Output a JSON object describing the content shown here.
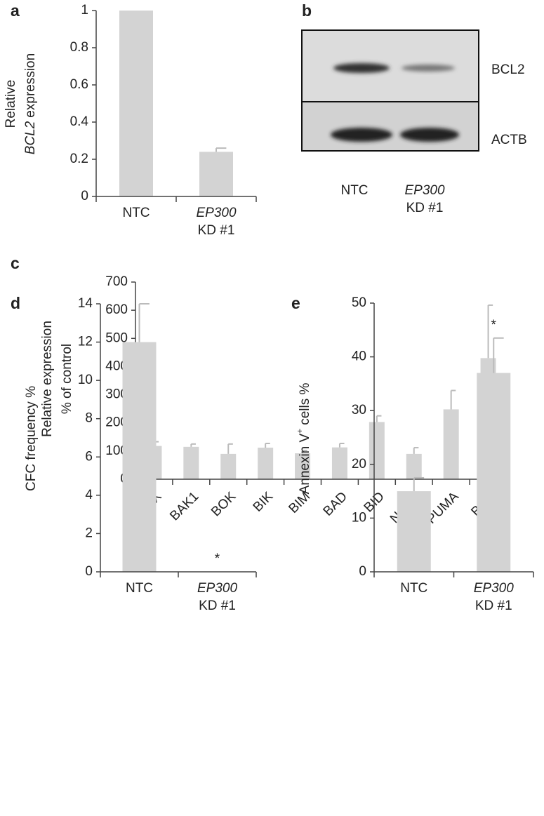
{
  "chart_data": [
    {
      "type": "bar",
      "panel": "a",
      "ylabel": [
        "Relative",
        "BCL2",
        "expression"
      ],
      "categories": [
        [
          "NTC"
        ],
        [
          "EP300",
          "KD #1"
        ]
      ],
      "values": [
        1,
        0.24
      ],
      "errors": [
        null,
        0.02
      ],
      "significance": [
        null,
        null
      ],
      "color": "#d3d3d3",
      "ylim": [
        0,
        1
      ],
      "yticks": [
        0,
        0.2,
        0.4,
        0.6,
        0.8,
        1
      ]
    },
    {
      "type": "bar",
      "panel": "c",
      "ylabel": [
        "Relative expression",
        "% of control"
      ],
      "categories": [
        [
          "BAX"
        ],
        [
          "BAK1"
        ],
        [
          "BOK"
        ],
        [
          "BIK"
        ],
        [
          "BIM"
        ],
        [
          "BAD"
        ],
        [
          "BID"
        ],
        [
          "NOXA"
        ],
        [
          "PUMA"
        ],
        [
          "BMF"
        ]
      ],
      "values": [
        118,
        115,
        90,
        112,
        92,
        113,
        203,
        90,
        248,
        430
      ],
      "errors": [
        15,
        10,
        35,
        15,
        10,
        14,
        22,
        22,
        67,
        188
      ],
      "significance": [
        null,
        null,
        null,
        null,
        null,
        null,
        null,
        null,
        null,
        null
      ],
      "color": "#d3d3d3",
      "ylim": [
        0,
        700
      ],
      "yticks": [
        0,
        100,
        200,
        300,
        400,
        500,
        600,
        700
      ]
    },
    {
      "type": "bar",
      "panel": "d",
      "ylabel": [
        "CFC frequency %"
      ],
      "categories": [
        [
          "NTC"
        ],
        [
          "EP300",
          "KD #1"
        ]
      ],
      "values": [
        12,
        0
      ],
      "errors": [
        2,
        null
      ],
      "significance": [
        null,
        "*"
      ],
      "color": "#d3d3d3",
      "ylim": [
        0,
        14
      ],
      "yticks": [
        0,
        2,
        4,
        6,
        8,
        10,
        12,
        14
      ]
    },
    {
      "type": "bar",
      "panel": "e",
      "ylabel": [
        "Annexin V",
        "+",
        "cells %"
      ],
      "categories": [
        [
          "NTC"
        ],
        [
          "EP300",
          "KD #1"
        ]
      ],
      "values": [
        15,
        37
      ],
      "errors": [
        2.5,
        6.5
      ],
      "significance": [
        null,
        "*"
      ],
      "color": "#d3d3d3",
      "ylim": [
        0,
        50
      ],
      "yticks": [
        0,
        10,
        20,
        30,
        40,
        50
      ]
    }
  ],
  "blot": {
    "panel": "b",
    "bands": [
      "BCL2",
      "ACTB"
    ],
    "lanes": [
      [
        "NTC"
      ],
      [
        "EP300",
        "KD #1"
      ]
    ]
  }
}
